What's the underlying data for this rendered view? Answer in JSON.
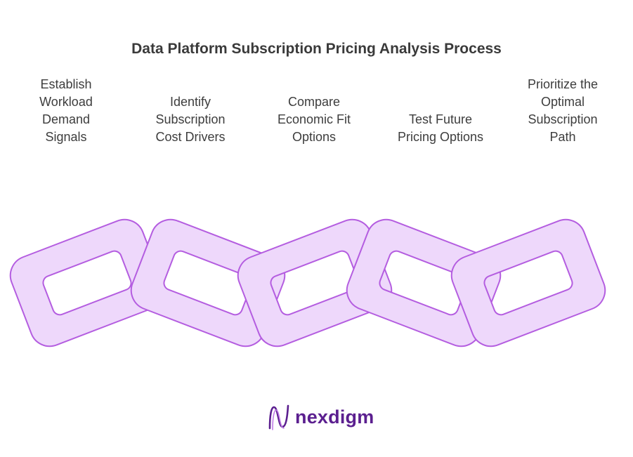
{
  "title": "Data Platform Subscription Pricing Analysis Process",
  "steps": [
    {
      "label": "Establish\nWorkload\nDemand\nSignals"
    },
    {
      "label": "Identify\nSubscription\nCost Drivers"
    },
    {
      "label": "Compare\nEconomic Fit\nOptions"
    },
    {
      "label": "Test Future\nPricing Options"
    },
    {
      "label": "Prioritize the\nOptimal\nSubscription\nPath"
    }
  ],
  "brand": {
    "name": "nexdigm",
    "logo_icon": "nexdigm-wave-icon",
    "color": "#5b1f8f"
  },
  "colors": {
    "link_fill": "#eed8fb",
    "link_stroke": "#b45de0"
  }
}
